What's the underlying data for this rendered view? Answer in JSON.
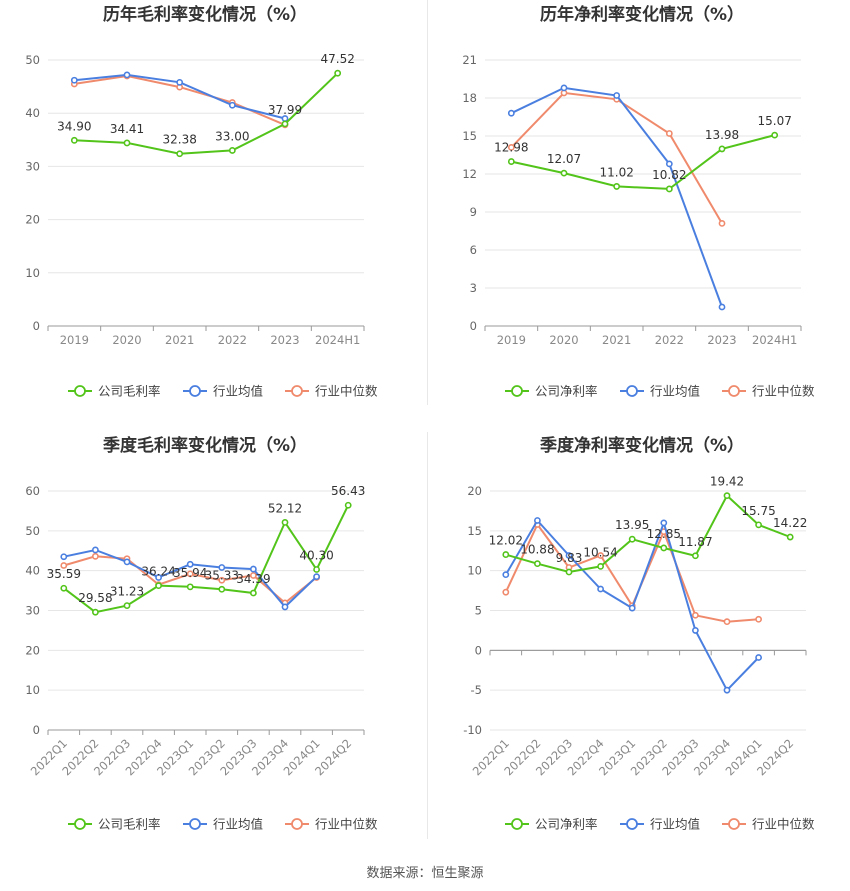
{
  "source": "数据来源：恒生聚源",
  "chart_data": [
    {
      "type": "line",
      "title": "历年毛利率变化情况（%）",
      "categories": [
        "2019",
        "2020",
        "2021",
        "2022",
        "2023",
        "2024H1"
      ],
      "ylim": [
        0,
        50
      ],
      "yticks": [
        0,
        10,
        20,
        30,
        40,
        50
      ],
      "grid": true,
      "legend_position": "bottom",
      "series": [
        {
          "name": "公司毛利率",
          "color": "#52c41a",
          "labeled": true,
          "values": [
            34.9,
            34.41,
            32.38,
            33.0,
            37.99,
            47.52
          ],
          "labels": [
            "34.90",
            "34.41",
            "32.38",
            "33.00",
            "37.99",
            "47.52"
          ]
        },
        {
          "name": "行业均值",
          "color": "#4a7fe0",
          "labeled": false,
          "values": [
            46.2,
            47.2,
            45.8,
            41.5,
            39.0,
            null
          ]
        },
        {
          "name": "行业中位数",
          "color": "#f08a6c",
          "labeled": false,
          "values": [
            45.5,
            47.0,
            44.9,
            42.0,
            37.8,
            null
          ]
        }
      ]
    },
    {
      "type": "line",
      "title": "历年净利率变化情况（%）",
      "categories": [
        "2019",
        "2020",
        "2021",
        "2022",
        "2023",
        "2024H1"
      ],
      "ylim": [
        0,
        21
      ],
      "yticks": [
        0,
        3,
        6,
        9,
        12,
        15,
        18,
        21
      ],
      "grid": true,
      "legend_position": "bottom",
      "series": [
        {
          "name": "公司净利率",
          "color": "#52c41a",
          "labeled": true,
          "values": [
            12.98,
            12.07,
            11.02,
            10.82,
            13.98,
            15.07
          ],
          "labels": [
            "12.98",
            "12.07",
            "11.02",
            "10.82",
            "13.98",
            "15.07"
          ]
        },
        {
          "name": "行业均值",
          "color": "#4a7fe0",
          "labeled": false,
          "values": [
            16.8,
            18.8,
            18.2,
            12.8,
            1.5,
            null
          ]
        },
        {
          "name": "行业中位数",
          "color": "#f08a6c",
          "labeled": false,
          "values": [
            14.1,
            18.4,
            17.9,
            15.2,
            8.1,
            null
          ]
        }
      ]
    },
    {
      "type": "line",
      "title": "季度毛利率变化情况（%）",
      "categories": [
        "2022Q1",
        "2022Q2",
        "2022Q3",
        "2022Q4",
        "2023Q1",
        "2023Q2",
        "2023Q3",
        "2023Q4",
        "2024Q1",
        "2024Q2"
      ],
      "ylim": [
        0,
        60
      ],
      "yticks": [
        0,
        10,
        20,
        30,
        40,
        50,
        60
      ],
      "grid": true,
      "legend_position": "bottom",
      "series": [
        {
          "name": "公司毛利率",
          "color": "#52c41a",
          "labeled": true,
          "values": [
            35.59,
            29.58,
            31.23,
            36.24,
            35.94,
            35.33,
            34.39,
            52.12,
            40.3,
            56.43
          ],
          "labels": [
            "35.59",
            "29.58",
            "31.23",
            "36.24",
            "35.94",
            "35.33",
            "34.39",
            "52.12",
            "40.30",
            "56.43"
          ]
        },
        {
          "name": "行业均值",
          "color": "#4a7fe0",
          "labeled": false,
          "values": [
            43.5,
            45.2,
            42.2,
            38.3,
            41.6,
            40.8,
            40.4,
            30.9,
            38.5,
            null
          ]
        },
        {
          "name": "行业中位数",
          "color": "#f08a6c",
          "labeled": false,
          "values": [
            41.3,
            43.6,
            43.0,
            36.5,
            39.2,
            37.6,
            38.8,
            31.9,
            38.3,
            null
          ]
        }
      ]
    },
    {
      "type": "line",
      "title": "季度净利率变化情况（%）",
      "categories": [
        "2022Q1",
        "2022Q2",
        "2022Q3",
        "2022Q4",
        "2023Q1",
        "2023Q2",
        "2023Q3",
        "2023Q4",
        "2024Q1",
        "2024Q2"
      ],
      "ylim": [
        -10,
        20
      ],
      "yticks": [
        -10,
        -5,
        0,
        5,
        10,
        15,
        20
      ],
      "grid": true,
      "legend_position": "bottom",
      "series": [
        {
          "name": "公司净利率",
          "color": "#52c41a",
          "labeled": true,
          "values": [
            12.02,
            10.88,
            9.83,
            10.54,
            13.95,
            12.85,
            11.87,
            19.42,
            15.75,
            14.22
          ],
          "labels": [
            "12.02",
            "10.88",
            "9.83",
            "10.54",
            "13.95",
            "12.85",
            "11.87",
            "19.42",
            "15.75",
            "14.22"
          ]
        },
        {
          "name": "行业均值",
          "color": "#4a7fe0",
          "labeled": false,
          "values": [
            9.5,
            16.3,
            11.9,
            7.7,
            5.3,
            16.0,
            2.5,
            -5.0,
            -0.9,
            null
          ]
        },
        {
          "name": "行业中位数",
          "color": "#f08a6c",
          "labeled": false,
          "values": [
            7.3,
            15.8,
            10.4,
            11.9,
            5.6,
            14.9,
            4.4,
            3.6,
            3.9,
            null
          ]
        }
      ]
    }
  ]
}
